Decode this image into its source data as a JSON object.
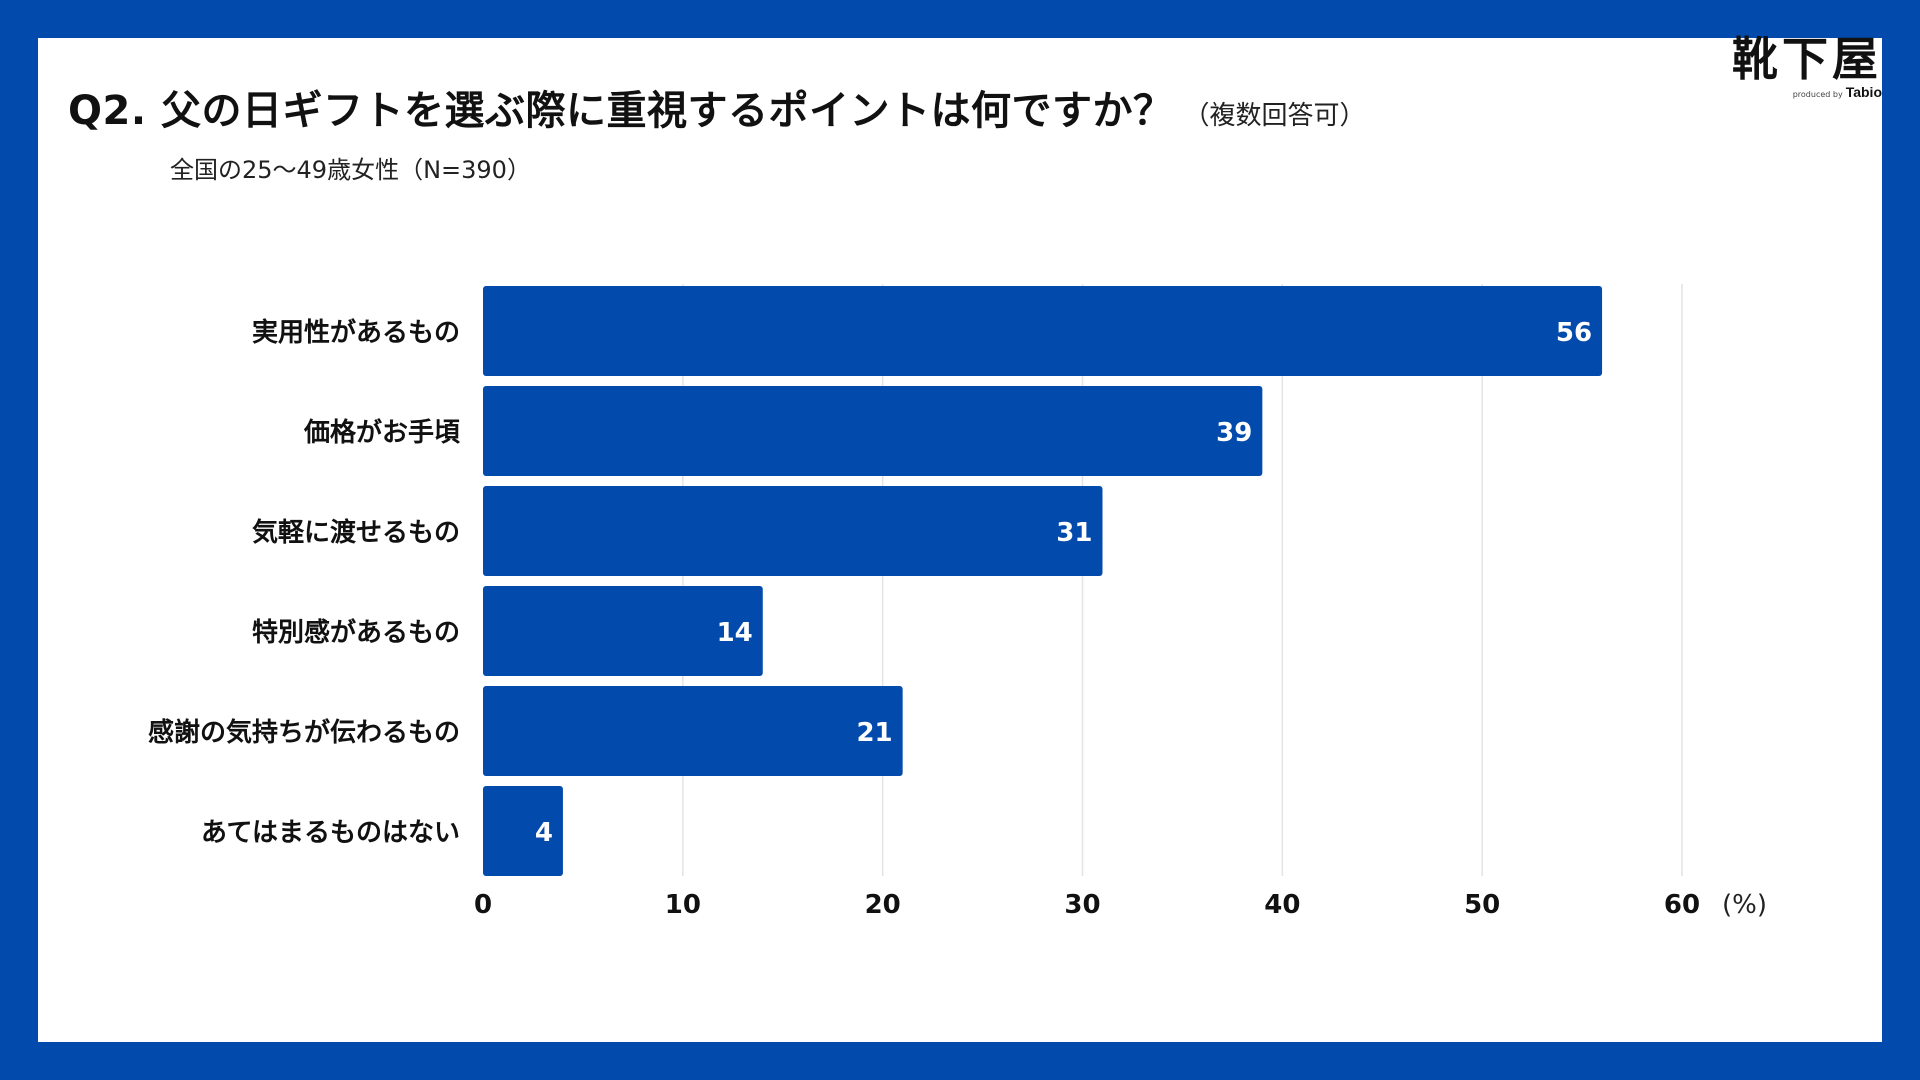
{
  "title": "Q2. 父の日ギフトを選ぶ際に重視するポイントは何ですか？",
  "title_note": "（複数回答可）",
  "subtitle": "全国の25〜49歳女性（N=390）",
  "logo": {
    "main": "靴下屋",
    "produced_by": "produced by",
    "brand": "Tabio"
  },
  "colors": {
    "frame": "#024aac",
    "bar": "#024aac",
    "grid": "#e4e4e4"
  },
  "chart_data": {
    "type": "bar",
    "orientation": "horizontal",
    "categories": [
      "実用性があるもの",
      "価格がお手頃",
      "気軽に渡せるもの",
      "特別感があるもの",
      "感謝の気持ちが伝わるもの",
      "あてはまるものはない"
    ],
    "values": [
      56,
      39,
      31,
      14,
      21,
      4
    ],
    "value_labels": [
      "56",
      "39",
      "31",
      "14",
      "21",
      "4"
    ],
    "xlim": [
      0,
      60
    ],
    "xticks": [
      0,
      10,
      20,
      30,
      40,
      50,
      60
    ],
    "xtick_labels": [
      "0",
      "10",
      "20",
      "30",
      "40",
      "50",
      "60"
    ],
    "unit_label": "(%)",
    "grid": true,
    "title": "Q2. 父の日ギフトを選ぶ際に重視するポイントは何ですか？"
  }
}
